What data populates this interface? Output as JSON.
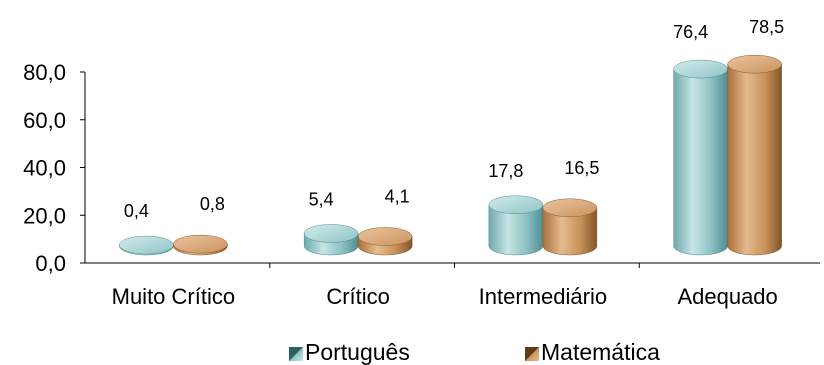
{
  "colors": {
    "portugues": "#8fc3c5",
    "portugues_dark": "#4f8e91",
    "matematica": "#c9935f",
    "matematica_dark": "#8b5a2b",
    "axis": "#000000"
  },
  "chart_data": {
    "type": "bar",
    "categories": [
      "Muito Crítico",
      "Crítico",
      "Intermediário",
      "Adequado"
    ],
    "series": [
      {
        "name": "Português",
        "values": [
          0.4,
          5.4,
          17.8,
          76.4
        ],
        "labels": [
          "0,4",
          "5,4",
          "17,8",
          "76,4"
        ]
      },
      {
        "name": "Matemática",
        "values": [
          0.8,
          4.1,
          16.5,
          78.5
        ],
        "labels": [
          "0,8",
          "4,1",
          "16,5",
          "78,5"
        ]
      }
    ],
    "ylim": [
      0,
      80
    ],
    "yticks": [
      "0,0",
      "20,0",
      "40,0",
      "60,0",
      "80,0"
    ],
    "ytick_values": [
      0,
      20,
      40,
      60,
      80
    ],
    "legend_position": "bottom",
    "grid": false,
    "style": "3d-cylinder"
  }
}
